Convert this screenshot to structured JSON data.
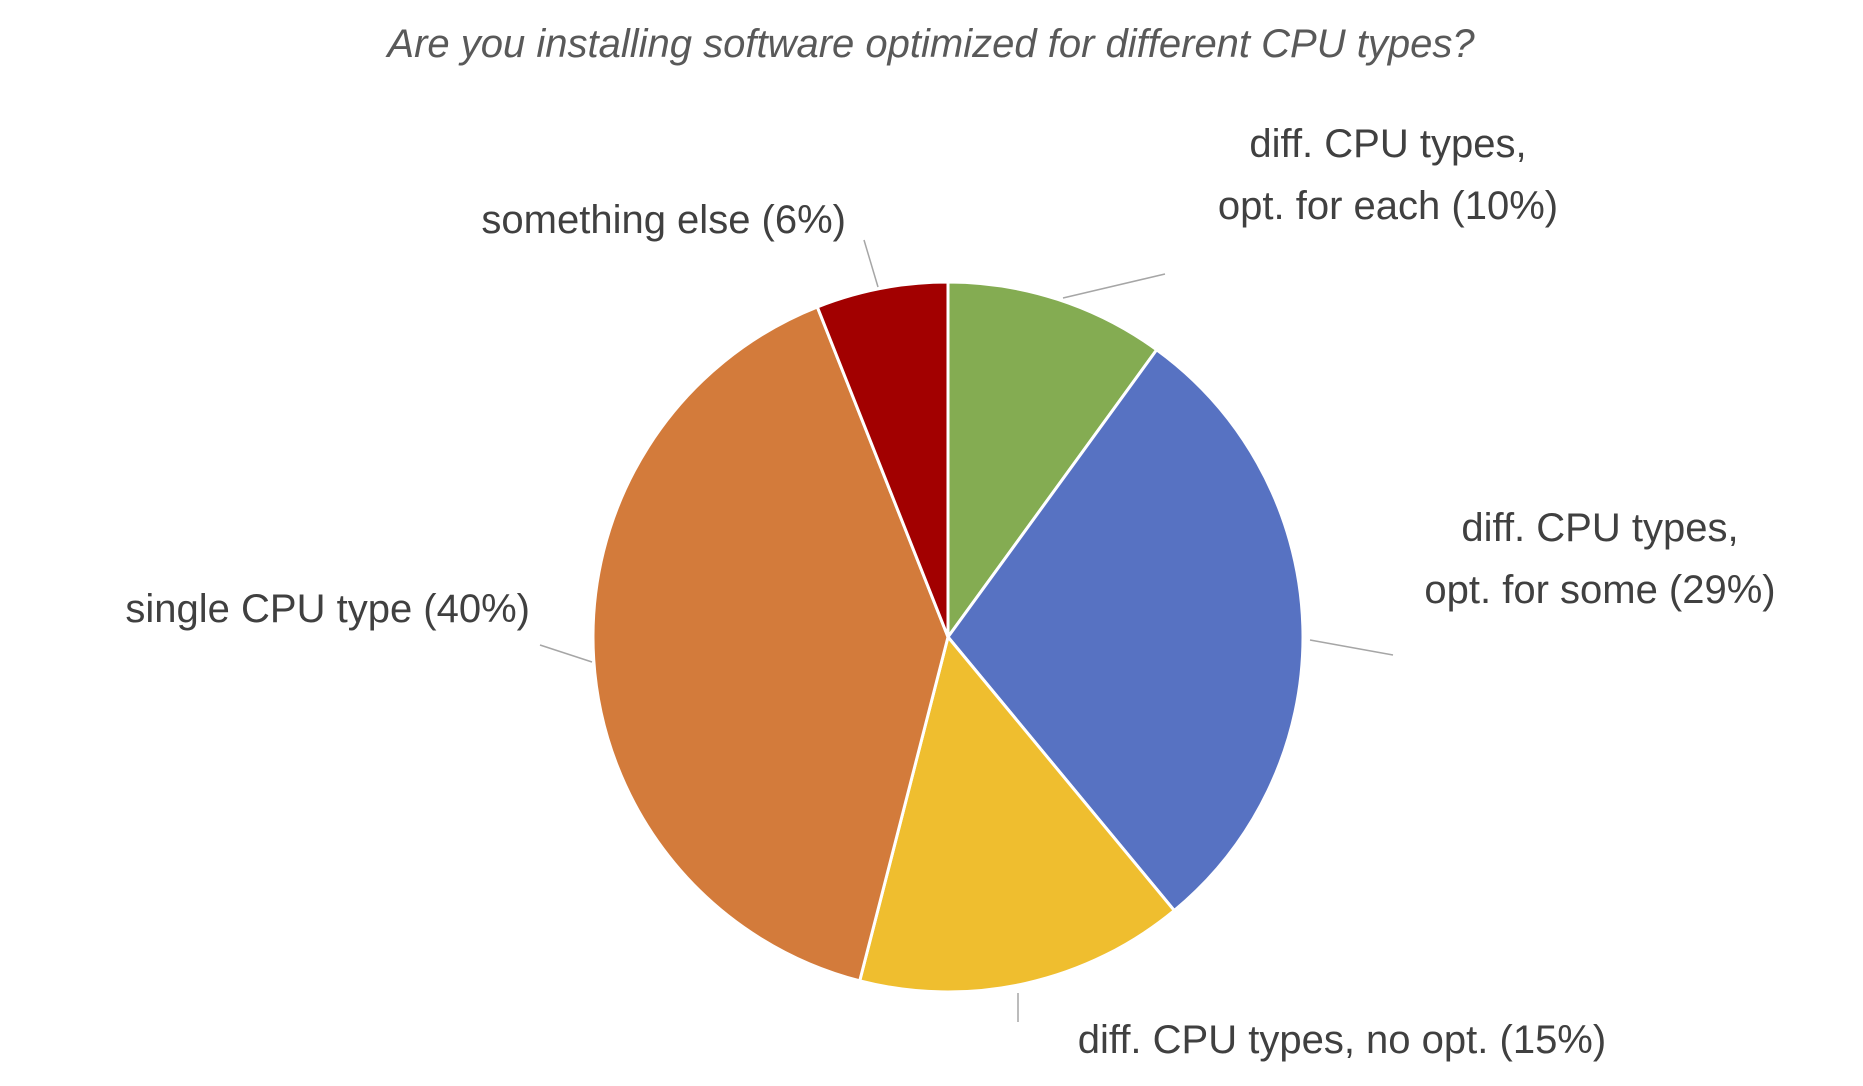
{
  "chart_data": {
    "type": "pie",
    "title": "Are you installing software optimized for different CPU types?",
    "slices": [
      {
        "label": "diff. CPU types, opt. for each (10%)",
        "label_lines": [
          "diff. CPU types,",
          "opt. for each (10%)"
        ],
        "value": 10,
        "color": "#84ac52"
      },
      {
        "label": "diff. CPU types, opt. for some (29%)",
        "label_lines": [
          "diff. CPU types,",
          "opt. for some (29%)"
        ],
        "value": 29,
        "color": "#5772c2"
      },
      {
        "label": "diff. CPU types, no opt. (15%)",
        "label_lines": [
          "diff. CPU types, no opt. (15%)"
        ],
        "value": 15,
        "color": "#efbe2f"
      },
      {
        "label": "single CPU type (40%)",
        "label_lines": [
          "single CPU type (40%)"
        ],
        "value": 40,
        "color": "#d37b3b"
      },
      {
        "label": "something else (6%)",
        "label_lines": [
          "something else (6%)"
        ],
        "value": 6,
        "color": "#a20000"
      }
    ],
    "start_angle": "12 o'clock",
    "direction": "clockwise",
    "legend": "none"
  }
}
